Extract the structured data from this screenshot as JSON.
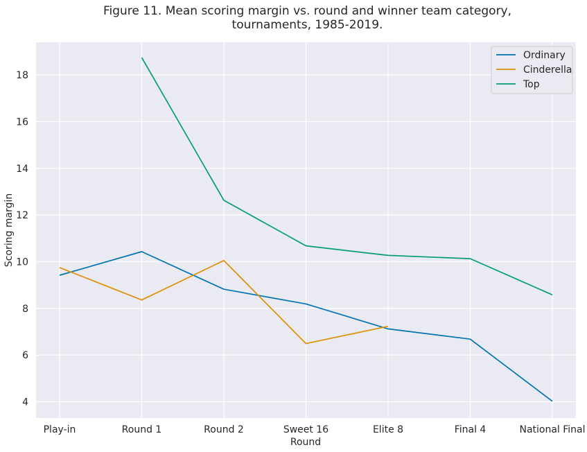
{
  "chart_data": {
    "type": "line",
    "title_lines": [
      "Figure 11. Mean scoring margin vs. round and winner team category,",
      "tournaments, 1985-2019."
    ],
    "xlabel": "Round",
    "ylabel": "Scoring margin",
    "categories": [
      "Play-in",
      "Round 1",
      "Round 2",
      "Sweet 16",
      "Elite 8",
      "Final 4",
      "National Final"
    ],
    "ylim": [
      3.3,
      19.4
    ],
    "yticks": [
      4,
      6,
      8,
      10,
      12,
      14,
      16,
      18
    ],
    "grid": true,
    "legend_position": "top-right",
    "series": [
      {
        "name": "Ordinary",
        "color": "#0173b2",
        "values": [
          9.42,
          10.43,
          8.82,
          8.19,
          7.12,
          6.68,
          4.02
        ]
      },
      {
        "name": "Cinderella",
        "color": "#de8f05",
        "values": [
          9.75,
          8.36,
          10.05,
          6.49,
          7.23,
          null,
          null
        ]
      },
      {
        "name": "Top",
        "color": "#029e73",
        "values": [
          null,
          18.75,
          12.63,
          10.68,
          10.27,
          10.13,
          8.58
        ]
      }
    ]
  }
}
